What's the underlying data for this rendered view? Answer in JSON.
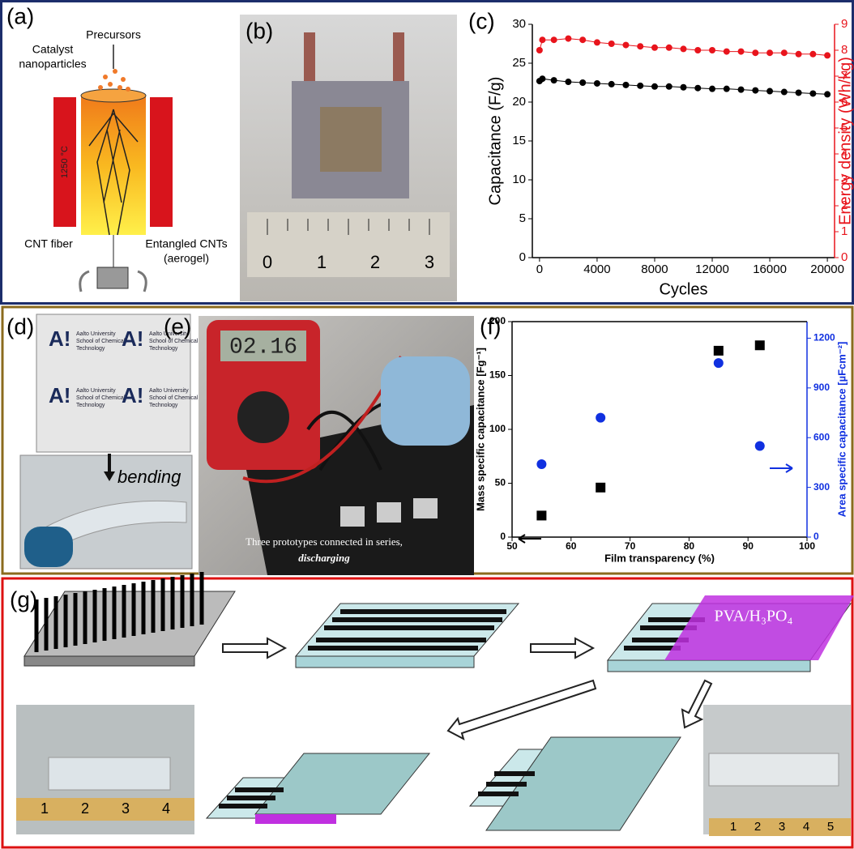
{
  "panels": {
    "labels": [
      "(a)",
      "(b)",
      "(c)",
      "(d)",
      "(e)",
      "(f)",
      "(g)"
    ],
    "a": {
      "precursors": "Precursors",
      "catalyst": [
        "Catalyst",
        "nanoparticles"
      ],
      "temperature": "1250 °C",
      "fiber": "CNT fiber",
      "entangled": [
        "Entangled CNTs",
        "(aerogel)"
      ]
    },
    "b": {
      "ruler": [
        "0",
        "1",
        "2",
        "3"
      ]
    },
    "d": {
      "logo": "A!",
      "logo_text": [
        "Aalto University",
        "School of Chemical",
        "Technology"
      ],
      "bending": "bending"
    },
    "e": {
      "display": "02.16",
      "caption": [
        "Three prototypes connected in series,",
        "discharging"
      ]
    },
    "g": {
      "electrolyte": "PVA/H₃PO₄",
      "ruler_left": [
        "1",
        "2",
        "3",
        "4"
      ],
      "ruler_right": [
        "1",
        "2",
        "3",
        "4",
        "5"
      ]
    }
  },
  "chart_data": [
    {
      "type": "line",
      "x": [
        0,
        200,
        1000,
        2000,
        3000,
        4000,
        5000,
        6000,
        7000,
        8000,
        9000,
        10000,
        11000,
        12000,
        13000,
        14000,
        15000,
        16000,
        17000,
        18000,
        19000,
        20000
      ],
      "series": [
        {
          "color": "#000000",
          "values": [
            22.7,
            23.0,
            22.8,
            22.6,
            22.5,
            22.4,
            22.3,
            22.2,
            22.1,
            22.0,
            22.0,
            21.9,
            21.8,
            21.7,
            21.7,
            21.6,
            21.5,
            21.4,
            21.3,
            21.2,
            21.1,
            21.0
          ]
        },
        {
          "color": "#e8141c",
          "axis": "y2",
          "values": [
            8.0,
            8.4,
            8.4,
            8.45,
            8.4,
            8.3,
            8.25,
            8.2,
            8.15,
            8.1,
            8.1,
            8.05,
            8.0,
            8.0,
            7.95,
            7.95,
            7.9,
            7.9,
            7.9,
            7.85,
            7.85,
            7.8
          ]
        }
      ],
      "x_label": "Cycles",
      "y_label": "Capacitance (F/g)",
      "y2_label": "Energy density (Wh/kg)",
      "xlim": [
        -500,
        20500
      ],
      "xticks": [
        0,
        4000,
        8000,
        12000,
        16000,
        20000
      ],
      "ylim": [
        0,
        30
      ],
      "yticks": [
        0,
        5,
        10,
        15,
        20,
        25,
        30
      ],
      "y2lim": [
        0,
        9
      ],
      "y2ticks": [
        0,
        1,
        2,
        3,
        4,
        5,
        6,
        7,
        8,
        9
      ],
      "y2color": "#e8141c"
    },
    {
      "type": "scatter",
      "x": [
        55,
        65,
        85,
        92
      ],
      "series": [
        {
          "color": "#000000",
          "marker": "square",
          "values": [
            20,
            46,
            173,
            178
          ]
        },
        {
          "color": "#1030e0",
          "marker": "circle",
          "axis": "y2",
          "values": [
            440,
            720,
            1050,
            550
          ]
        }
      ],
      "x_label": "Film transparency (%)",
      "y_label": "Mass specific capacitance [Fg⁻¹]",
      "y2_label": "Area specific capacitance [µFcm⁻²]",
      "xlim": [
        50,
        100
      ],
      "xticks": [
        50,
        60,
        70,
        80,
        90,
        100
      ],
      "ylim": [
        0,
        200
      ],
      "yticks": [
        0,
        50,
        100,
        150,
        200
      ],
      "y2lim": [
        0,
        1300
      ],
      "y2ticks": [
        0,
        300,
        600,
        900,
        1200
      ],
      "y2color": "#1030e0"
    }
  ]
}
